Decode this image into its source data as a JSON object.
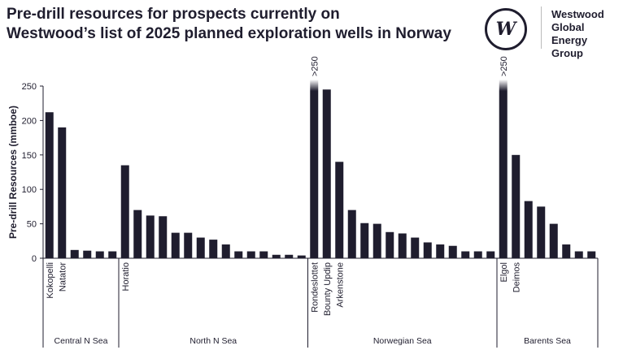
{
  "header": {
    "title_line1": "Pre-drill resources for prospects currently on",
    "title_line2": "Westwood’s list of 2025 planned exploration wells in Norway"
  },
  "logo": {
    "mark": "W",
    "line1": "Westwood",
    "line2": "Global Energy",
    "line3": "Group"
  },
  "chart_data": {
    "type": "bar",
    "title": "Pre-drill resources for prospects currently on Westwood’s list of 2025 planned exploration wells in Norway",
    "ylabel": "Pre-drill Resources (mmboe)",
    "ylim": [
      0,
      250
    ],
    "yticks": [
      0,
      50,
      100,
      150,
      200,
      250
    ],
    "grid": false,
    "bar_color": "#1f1d2e",
    "overflow_label": ">250",
    "groups": [
      {
        "name": "Central N Sea",
        "labels": [
          "Kokopelli",
          "Natator",
          "",
          "",
          "",
          ""
        ],
        "values": [
          212,
          190,
          12,
          11,
          10,
          10
        ]
      },
      {
        "name": "North N Sea",
        "labels": [
          "Horatio",
          "",
          "",
          "",
          "",
          "",
          "",
          "",
          "",
          "",
          "",
          "",
          "",
          "",
          ""
        ],
        "values": [
          135,
          70,
          62,
          61,
          37,
          37,
          30,
          27,
          20,
          10,
          10,
          10,
          5,
          5,
          4
        ]
      },
      {
        "name": "Norwegian Sea",
        "labels": [
          "Rondeslottet",
          "Bounty Updip",
          "Arkenstone",
          "",
          "",
          "",
          "",
          "",
          "",
          "",
          "",
          "",
          "",
          "",
          ""
        ],
        "values": [
          270,
          245,
          140,
          70,
          51,
          50,
          38,
          36,
          30,
          23,
          20,
          18,
          10,
          10,
          10
        ]
      },
      {
        "name": "Barents Sea",
        "labels": [
          "Elgol",
          "Deimos",
          "",
          "",
          "",
          "",
          "",
          ""
        ],
        "values": [
          270,
          150,
          83,
          75,
          50,
          20,
          10,
          10
        ]
      }
    ]
  }
}
